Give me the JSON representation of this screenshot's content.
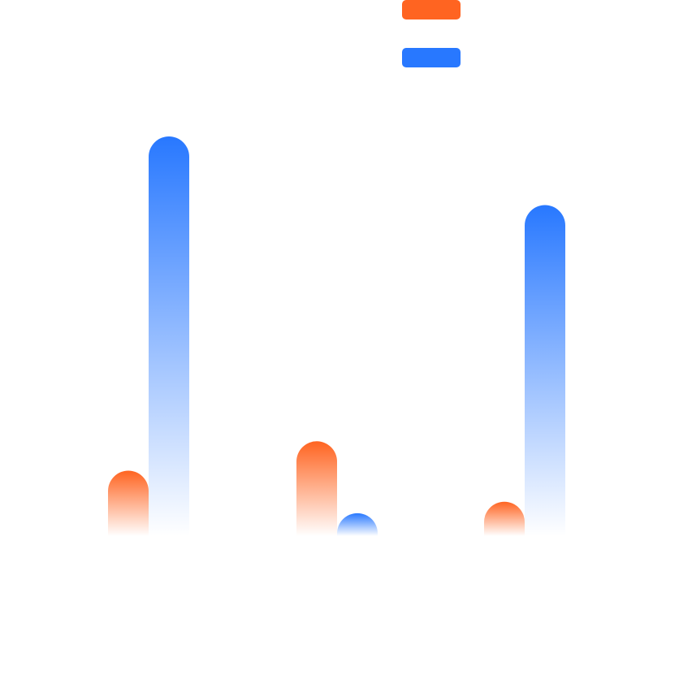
{
  "colors": {
    "series_a": "#FF6421",
    "series_b": "#2878FF",
    "background": "#FFFFFF"
  },
  "chart_data": {
    "type": "bar",
    "categories": [
      "",
      "",
      ""
    ],
    "series": [
      {
        "color": "#FF6421",
        "values": [
          80,
          116,
          42
        ]
      },
      {
        "color": "#2878FF",
        "values": [
          489,
          28,
          405
        ]
      }
    ],
    "ylim": [
      0,
      489
    ],
    "grid": false,
    "axes_visible": false,
    "legend": {
      "position": "top-center",
      "labels_visible": false
    }
  }
}
